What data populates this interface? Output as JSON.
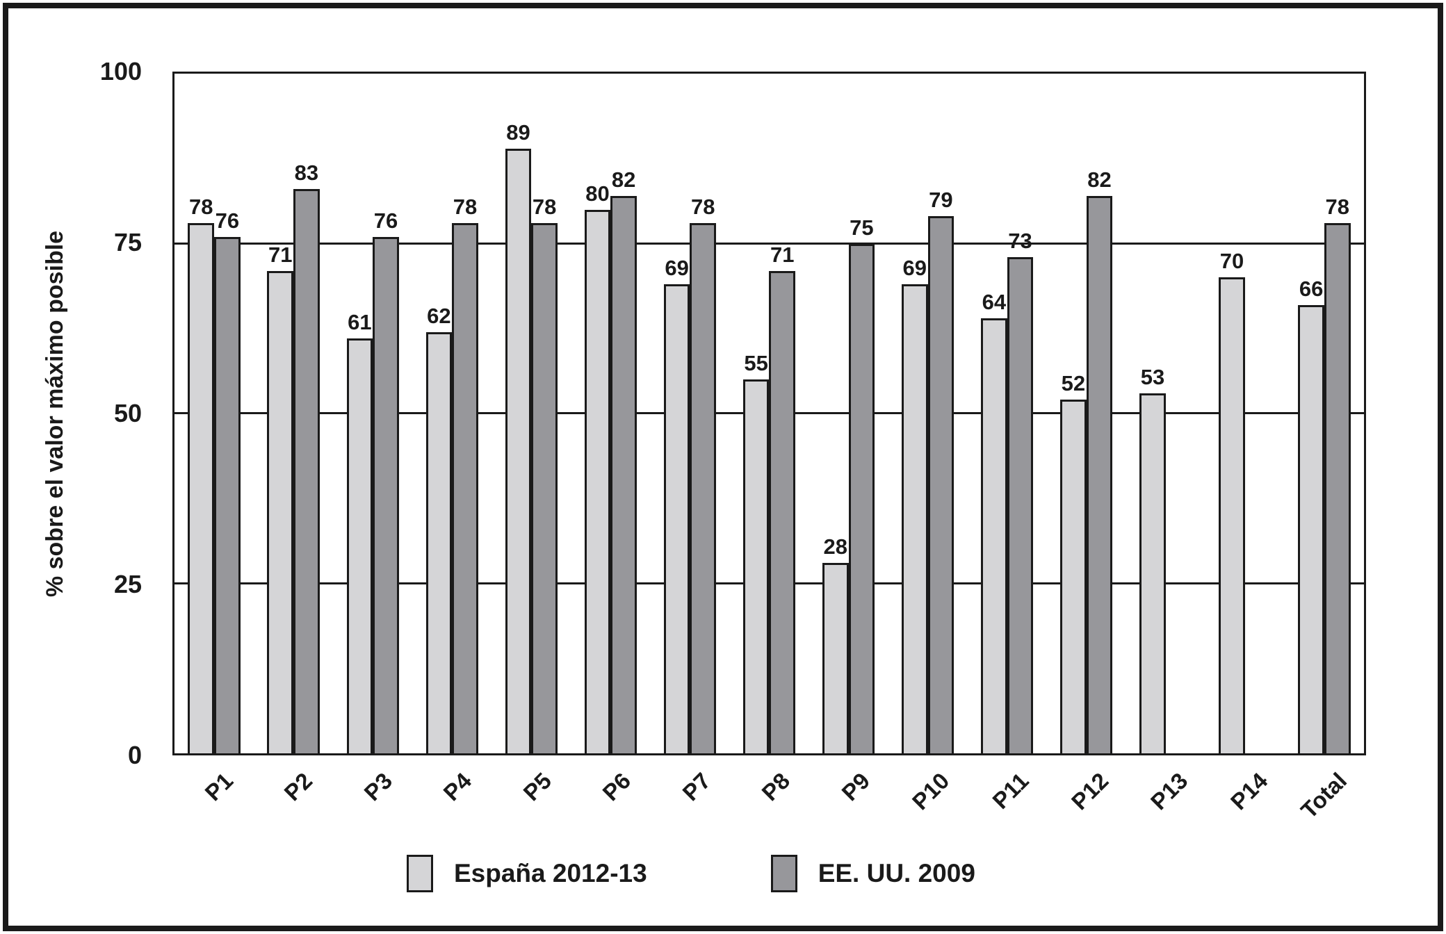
{
  "figure": {
    "background": "#ffffff",
    "line_color": "#1a1a1a"
  },
  "legend": {
    "espana_label": "España 2012-13",
    "eeuu_label": "EE. UU. 2009"
  },
  "chart_data": {
    "type": "bar",
    "categories": [
      "P1",
      "P2",
      "P3",
      "P4",
      "P5",
      "P6",
      "P7",
      "P8",
      "P9",
      "P10",
      "P11",
      "P12",
      "P13",
      "P14",
      "Total"
    ],
    "series": [
      {
        "name": "España 2012-13",
        "color": "#d5d5d7",
        "values": [
          78,
          71,
          61,
          62,
          89,
          80,
          69,
          55,
          28,
          69,
          64,
          52,
          53,
          70,
          66
        ]
      },
      {
        "name": "EE. UU. 2009",
        "color": "#97979b",
        "values": [
          76,
          83,
          76,
          78,
          78,
          82,
          78,
          71,
          75,
          79,
          73,
          82,
          null,
          null,
          78
        ]
      }
    ],
    "title": "",
    "xlabel": "",
    "ylabel": "% sobre el valor máximo posible",
    "ylim": [
      0,
      100
    ],
    "yticks": [
      0,
      25,
      50,
      75,
      100
    ],
    "gridlines": [
      25,
      50,
      75
    ],
    "grid": true,
    "legend_position": "bottom",
    "bar_value_labels": true
  }
}
